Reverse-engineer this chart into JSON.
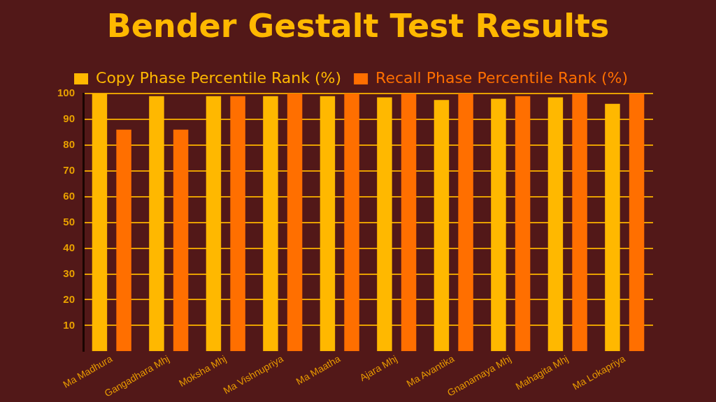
{
  "chart_data": {
    "type": "bar",
    "title": "Bender Gestalt Test Results",
    "categories": [
      "Ma Madhura",
      "Gangadhara Mhj",
      "Moksha Mhj",
      "Ma Vishnupriya",
      "Ma Maatha",
      "Ajara Mhj",
      "Ma Avantika",
      "Gnanamaya Mhj",
      "Mahagita Mhj",
      "Ma Lokapriya"
    ],
    "series": [
      {
        "name": "Copy Phase Percentile Rank (%)",
        "color": "#ffb800",
        "values": [
          100,
          99,
          99,
          99,
          99,
          98.5,
          97.5,
          98,
          98.5,
          96
        ]
      },
      {
        "name": "Recall Phase Percentile Rank (%)",
        "color": "#ff6f00",
        "values": [
          86,
          86,
          99,
          100,
          100,
          100,
          100,
          99,
          100,
          100
        ]
      }
    ],
    "ylim": [
      0,
      100
    ],
    "yticks": [
      10,
      20,
      30,
      40,
      50,
      60,
      70,
      80,
      90,
      100
    ],
    "grid": "y",
    "legend": "top"
  }
}
